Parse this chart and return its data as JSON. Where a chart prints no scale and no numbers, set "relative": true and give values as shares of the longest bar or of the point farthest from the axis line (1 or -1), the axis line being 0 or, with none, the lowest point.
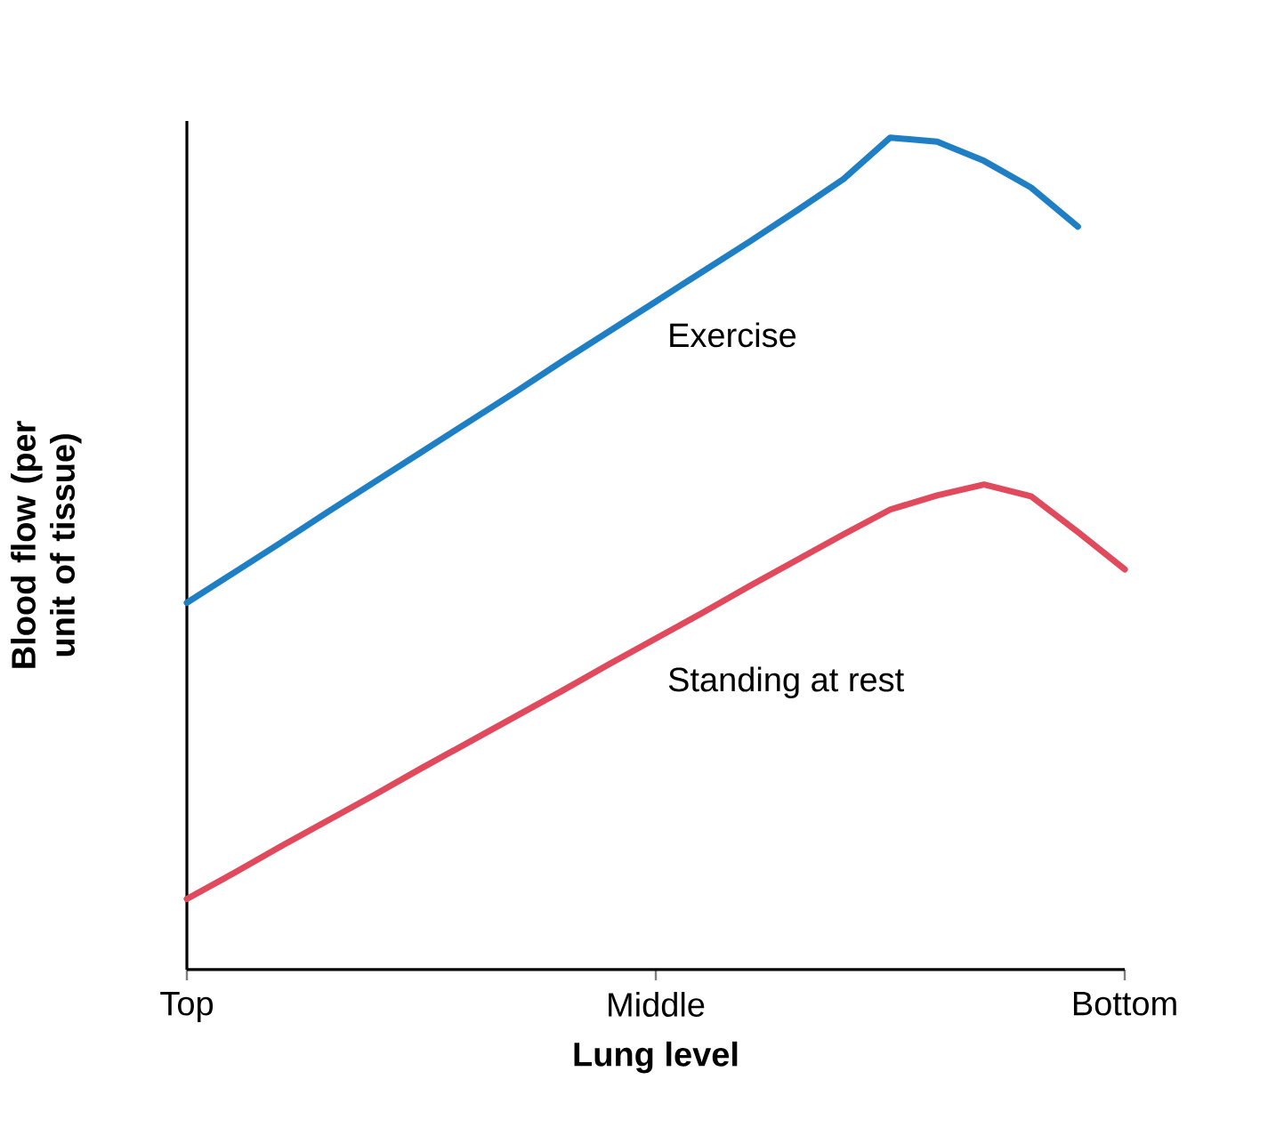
{
  "chart_data": {
    "type": "line",
    "relative": true,
    "xlabel": "Lung level",
    "ylabel": "Blood flow (per unit of tissue)",
    "categories": [
      "Top",
      null,
      null,
      null,
      null,
      null,
      null,
      null,
      null,
      null,
      "Middle",
      null,
      null,
      null,
      null,
      null,
      null,
      null,
      null,
      null,
      "Bottom"
    ],
    "legend": false,
    "grid": false,
    "marker": "none",
    "line_style": "solid",
    "series": [
      {
        "name": "Exercise",
        "color": "#1f7fc4",
        "values": [
          0.441,
          0.477,
          0.513,
          0.55,
          0.586,
          0.622,
          0.658,
          0.694,
          0.731,
          0.767,
          0.803,
          0.839,
          0.875,
          0.912,
          0.95,
          1.0,
          0.995,
          0.972,
          0.94,
          0.893,
          null
        ]
      },
      {
        "name": "Standing at rest",
        "color": "#e04a5c",
        "values": [
          0.085,
          0.116,
          0.148,
          0.179,
          0.21,
          0.242,
          0.273,
          0.304,
          0.335,
          0.367,
          0.398,
          0.429,
          0.461,
          0.492,
          0.523,
          0.553,
          0.57,
          0.583,
          0.569,
          0.526,
          0.481
        ]
      }
    ]
  }
}
